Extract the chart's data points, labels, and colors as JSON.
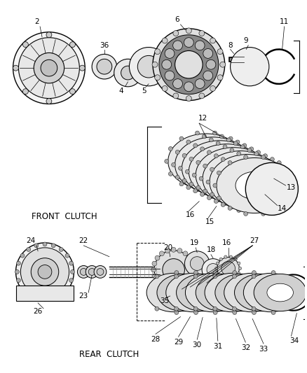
{
  "background_color": "#ffffff",
  "line_color": "#000000",
  "front_clutch_label": "FRONT  CLUTCH",
  "rear_clutch_label": "REAR  CLUTCH",
  "label_fontsize": 7.5,
  "figsize": [
    4.38,
    5.33
  ],
  "dpi": 100
}
